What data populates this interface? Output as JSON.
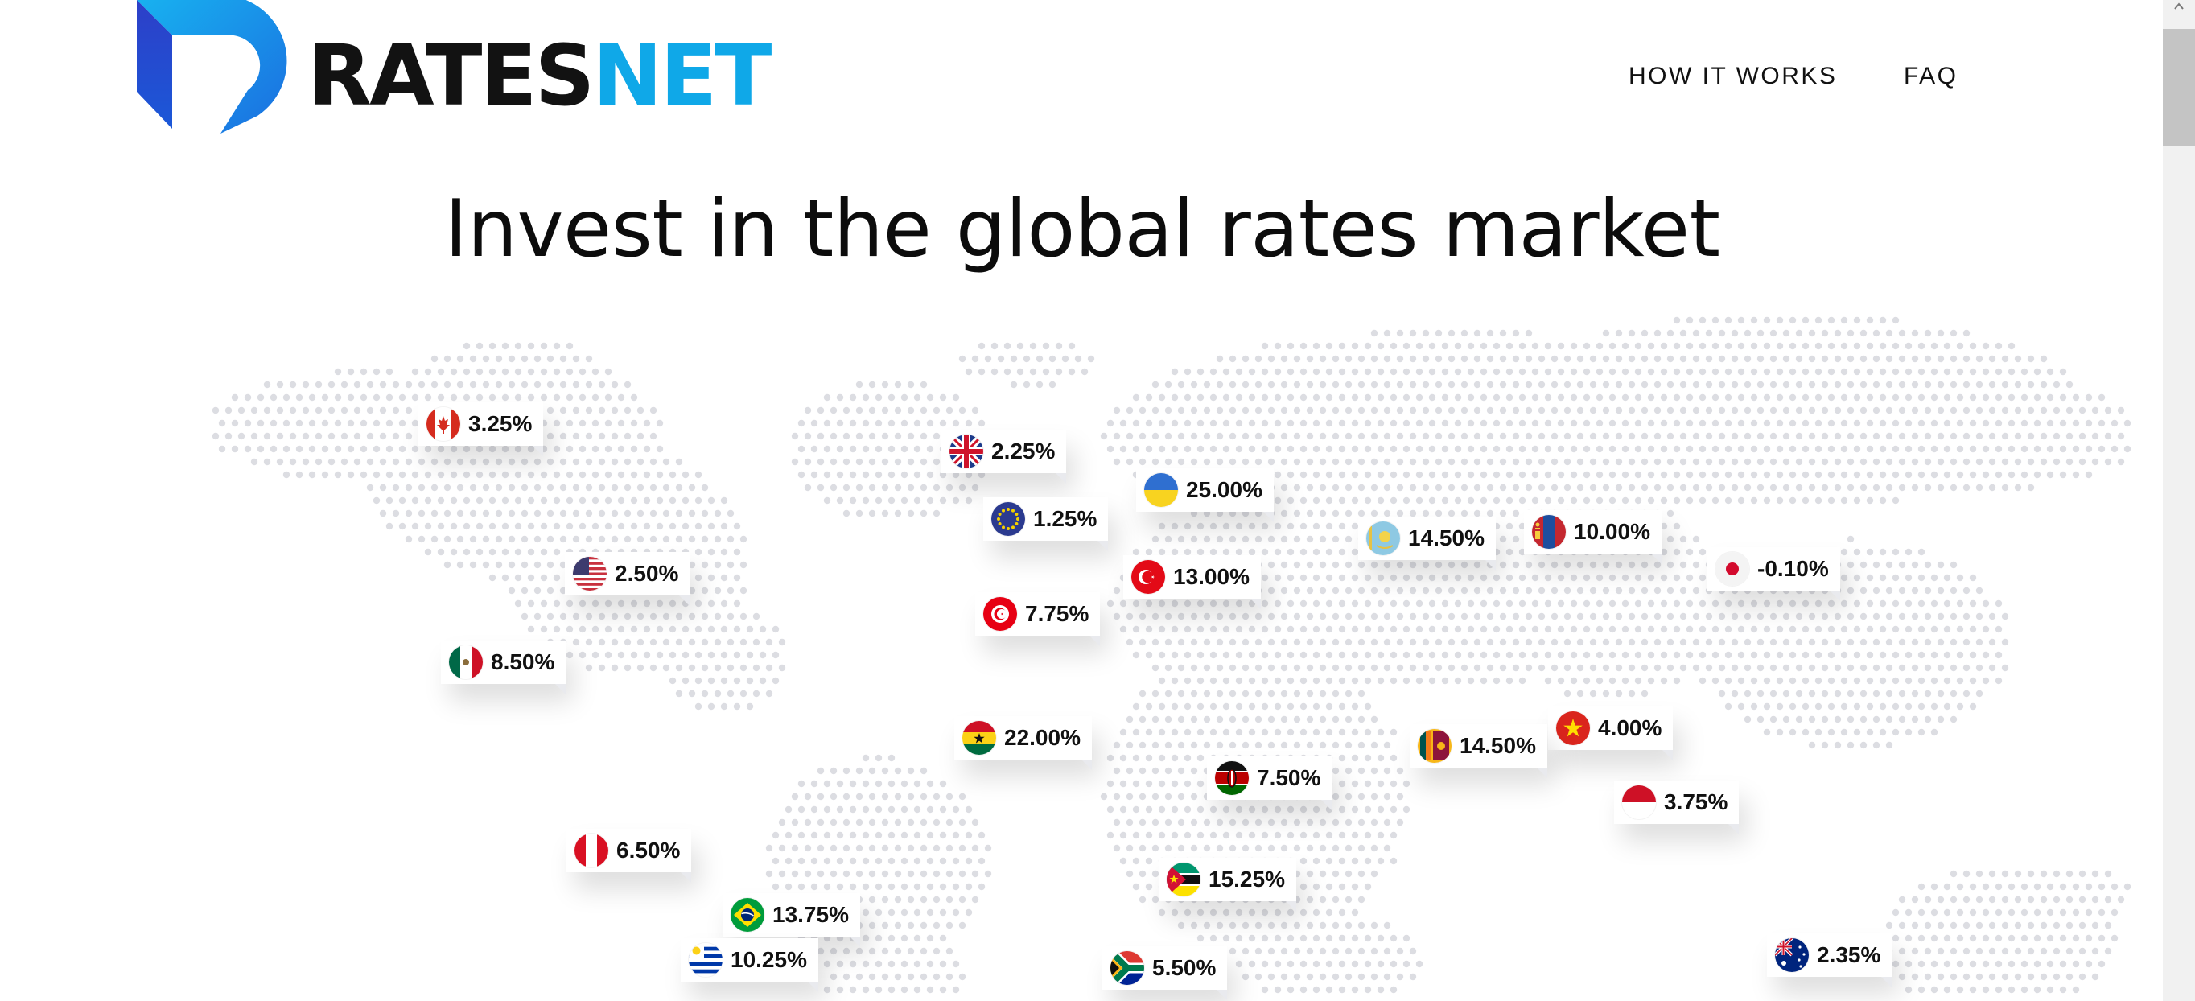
{
  "brand": {
    "name_part1": "RATES",
    "name_part2": "NET",
    "primary": "#0fa8e8",
    "secondary": "#2445c9"
  },
  "nav": {
    "how_it_works": "HOW IT WORKS",
    "faq": "FAQ"
  },
  "headline": "Invest in the global rates market",
  "markets": [
    {
      "country": "canada",
      "rate": "3.25%"
    },
    {
      "country": "united-kingdom",
      "rate": "2.25%"
    },
    {
      "country": "ukraine",
      "rate": "25.00%"
    },
    {
      "country": "european-union",
      "rate": "1.25%"
    },
    {
      "country": "kazakhstan",
      "rate": "14.50%"
    },
    {
      "country": "mongolia",
      "rate": "10.00%"
    },
    {
      "country": "japan",
      "rate": "-0.10%"
    },
    {
      "country": "united-states",
      "rate": "2.50%"
    },
    {
      "country": "turkey",
      "rate": "13.00%"
    },
    {
      "country": "tunisia",
      "rate": "7.75%"
    },
    {
      "country": "mexico",
      "rate": "8.50%"
    },
    {
      "country": "ghana",
      "rate": "22.00%"
    },
    {
      "country": "vietnam",
      "rate": "4.00%"
    },
    {
      "country": "sri-lanka",
      "rate": "14.50%"
    },
    {
      "country": "kenya",
      "rate": "7.50%"
    },
    {
      "country": "indonesia",
      "rate": "3.75%"
    },
    {
      "country": "peru",
      "rate": "6.50%"
    },
    {
      "country": "mozambique",
      "rate": "15.25%"
    },
    {
      "country": "brazil",
      "rate": "13.75%"
    },
    {
      "country": "uruguay",
      "rate": "10.25%"
    },
    {
      "country": "south-africa",
      "rate": "5.50%"
    },
    {
      "country": "australia",
      "rate": "2.35%"
    }
  ]
}
